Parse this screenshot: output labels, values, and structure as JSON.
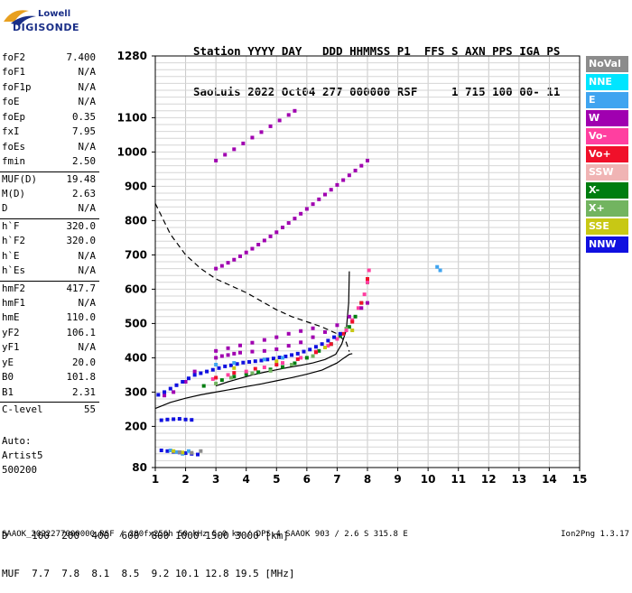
{
  "logo": {
    "line1": "Lowell",
    "line2": "DIGISONDE"
  },
  "header": {
    "line1": "Station YYYY DAY   DDD HHMMSS P1  FFS S AXN PPS IGA PS",
    "line2": "SaoLuis 2022 Oct04 277 000000 RSF     1 715 100 00- 11"
  },
  "params": [
    {
      "label": "foF2",
      "value": "7.400"
    },
    {
      "label": "foF1",
      "value": "N/A"
    },
    {
      "label": "foF1p",
      "value": "N/A"
    },
    {
      "label": "foE",
      "value": "N/A"
    },
    {
      "label": "foEp",
      "value": "0.35"
    },
    {
      "label": "fxI",
      "value": "7.95"
    },
    {
      "label": "foEs",
      "value": "N/A"
    },
    {
      "label": "fmin",
      "value": "2.50"
    },
    {
      "label": "MUF(D)",
      "value": "19.48"
    },
    {
      "label": "M(D)",
      "value": "2.63"
    },
    {
      "label": "D",
      "value": "N/A"
    },
    {
      "label": "h`F",
      "value": "320.0"
    },
    {
      "label": "h`F2",
      "value": "320.0"
    },
    {
      "label": "h`E",
      "value": "N/A"
    },
    {
      "label": "h`Es",
      "value": "N/A"
    },
    {
      "label": "hmF2",
      "value": "417.7"
    },
    {
      "label": "hmF1",
      "value": "N/A"
    },
    {
      "label": "hmE",
      "value": "110.0"
    },
    {
      "label": "yF2",
      "value": "106.1"
    },
    {
      "label": "yF1",
      "value": "N/A"
    },
    {
      "label": "yE",
      "value": "20.0"
    },
    {
      "label": "B0",
      "value": "101.8"
    },
    {
      "label": "B1",
      "value": "2.31"
    },
    {
      "label": "C-level",
      "value": "55"
    }
  ],
  "auto": {
    "line1": "Auto:",
    "line2": "Artist5",
    "line3": "500200"
  },
  "legend": [
    {
      "label": "NoVal",
      "color": "#8c8c8c"
    },
    {
      "label": "NNE",
      "color": "#00e5ff"
    },
    {
      "label": "E",
      "color": "#3fa4f0"
    },
    {
      "label": "W",
      "color": "#a000b0"
    },
    {
      "label": "Vo-",
      "color": "#ff3fa0"
    },
    {
      "label": "Vo+",
      "color": "#f0102a"
    },
    {
      "label": "SSW",
      "color": "#f0b4b4"
    },
    {
      "label": "X-",
      "color": "#007d10"
    },
    {
      "label": "X+",
      "color": "#72b460"
    },
    {
      "label": "SSE",
      "color": "#c8c814"
    },
    {
      "label": "NNW",
      "color": "#1010e0"
    }
  ],
  "conversion": {
    "line1": "D    100  200  400  600  800 1000 1500 3000 [km]",
    "line2": "MUF  7.7  7.8  8.1  8.5  9.2 10.1 12.8 19.5 [MHz]"
  },
  "footer": "SAAOK_2022277000000.RSF / 280fx256h 50 kHz 5.0 km / DPS-4 SAAOK 903 / 2.6 S 315.8 E",
  "version": "Ion2Png 1.3.17",
  "chart_data": {
    "type": "scatter",
    "xlabel": "",
    "ylabel": "",
    "xlim": [
      1,
      15
    ],
    "ylim": [
      80,
      1280
    ],
    "xticks": [
      1,
      2,
      3,
      4,
      5,
      6,
      7,
      8,
      9,
      10,
      11,
      12,
      13,
      14,
      15
    ],
    "yticks": [
      80,
      200,
      300,
      400,
      500,
      600,
      700,
      800,
      900,
      1000,
      1100,
      1280
    ],
    "grid": true,
    "series": [
      {
        "name": "X-",
        "color": "#007d10",
        "x": [
          2.6,
          3.2,
          3.6,
          4.0,
          4.4,
          4.8,
          5.2,
          5.6,
          6.0,
          6.4,
          6.8,
          7.1,
          7.4,
          7.6,
          7.8,
          8.0
        ],
        "y": [
          318,
          335,
          345,
          352,
          358,
          366,
          373,
          384,
          400,
          420,
          440,
          463,
          490,
          520,
          560,
          620
        ]
      },
      {
        "name": "X+",
        "color": "#72b460",
        "x": [
          3.0,
          3.5,
          4.2,
          4.8,
          5.5,
          6.2,
          6.8,
          7.3
        ],
        "y": [
          325,
          342,
          355,
          362,
          380,
          405,
          440,
          485
        ]
      },
      {
        "name": "Vo-",
        "color": "#ff3fa0",
        "x": [
          2.9,
          3.4,
          4.0,
          4.6,
          5.2,
          5.8,
          6.3,
          6.7,
          7.0,
          7.3,
          7.5,
          7.7,
          7.9,
          8.0,
          8.05
        ],
        "y": [
          338,
          350,
          360,
          372,
          385,
          400,
          418,
          435,
          455,
          480,
          510,
          545,
          585,
          620,
          655
        ]
      },
      {
        "name": "Vo+",
        "color": "#f0102a",
        "x": [
          3.0,
          3.6,
          4.3,
          5.0,
          5.7,
          6.3,
          6.8,
          7.2,
          7.5,
          7.8,
          8.0
        ],
        "y": [
          342,
          356,
          368,
          380,
          396,
          416,
          440,
          470,
          505,
          560,
          630
        ]
      },
      {
        "name": "W",
        "color": "#a000b0",
        "x": [
          1.3,
          1.6,
          2.0,
          2.3,
          3.0,
          3.2,
          3.4,
          3.6,
          3.8,
          4.2,
          4.6,
          5.0,
          5.4,
          5.8,
          6.2,
          6.6,
          7.0,
          7.4,
          7.8,
          8.0,
          3.0,
          3.2,
          3.4,
          3.6,
          3.8,
          4.0,
          4.2,
          4.4,
          4.6,
          4.8,
          5.0,
          5.2,
          5.4,
          5.6,
          5.8,
          6.0,
          6.2,
          6.4,
          6.6,
          6.8,
          7.0,
          7.2,
          7.4,
          7.6,
          7.8,
          8.0,
          3.0,
          3.3,
          3.6,
          3.9,
          4.2,
          4.5,
          4.8,
          5.1,
          5.4,
          5.6,
          3.0,
          3.4,
          3.8,
          4.2,
          4.6,
          5.0,
          5.4,
          5.8,
          6.2
        ],
        "y": [
          290,
          300,
          330,
          360,
          400,
          405,
          408,
          412,
          415,
          418,
          420,
          425,
          435,
          445,
          460,
          475,
          495,
          520,
          545,
          560,
          660,
          668,
          677,
          686,
          696,
          707,
          718,
          730,
          742,
          754,
          766,
          780,
          793,
          806,
          820,
          834,
          848,
          862,
          876,
          890,
          904,
          918,
          932,
          946,
          960,
          975,
          975,
          992,
          1008,
          1025,
          1042,
          1058,
          1075,
          1092,
          1108,
          1120,
          420,
          428,
          436,
          444,
          452,
          460,
          470,
          478,
          486
        ]
      },
      {
        "name": "NNW",
        "color": "#1010e0",
        "x": [
          1.1,
          1.3,
          1.5,
          1.7,
          1.9,
          2.1,
          2.3,
          2.5,
          2.7,
          2.9,
          3.1,
          3.3,
          3.5,
          3.7,
          3.9,
          4.1,
          4.3,
          4.5,
          4.7,
          4.9,
          5.1,
          5.3,
          5.5,
          5.7,
          5.9,
          6.1,
          6.3,
          6.5,
          6.7,
          6.9,
          7.1,
          1.2,
          1.4,
          1.6,
          1.8,
          2.0,
          2.2,
          1.2,
          1.4,
          1.6,
          1.8,
          2.0,
          2.2,
          2.4
        ],
        "y": [
          292,
          300,
          310,
          320,
          330,
          340,
          350,
          355,
          360,
          365,
          370,
          375,
          378,
          382,
          386,
          388,
          390,
          392,
          395,
          398,
          401,
          404,
          408,
          412,
          418,
          424,
          432,
          440,
          450,
          460,
          470,
          218,
          220,
          221,
          222,
          220,
          219,
          130,
          128,
          126,
          124,
          122,
          120,
          118
        ]
      },
      {
        "name": "E",
        "color": "#3fa4f0",
        "x": [
          1.5,
          1.7,
          1.9,
          2.1,
          3.0,
          3.6,
          4.6,
          5.2,
          10.3,
          10.4
        ],
        "y": [
          130,
          125,
          120,
          128,
          380,
          385,
          395,
          400,
          665,
          655
        ]
      },
      {
        "name": "SSE",
        "color": "#c8c814",
        "x": [
          1.6,
          1.9,
          3.6,
          5.0,
          6.6,
          7.5
        ],
        "y": [
          128,
          124,
          370,
          390,
          430,
          480
        ]
      },
      {
        "name": "NoVal",
        "color": "#8c8c8c",
        "x": [
          1.8,
          2.2,
          2.5
        ],
        "y": [
          125,
          123,
          128
        ]
      }
    ],
    "curves": [
      {
        "name": "electron density profile (dashed)",
        "style": "dashed",
        "x": [
          1.0,
          1.5,
          2.0,
          2.5,
          3.0,
          3.5,
          4.0,
          4.5,
          5.0,
          5.5,
          6.0,
          6.5,
          7.0,
          7.3,
          7.4
        ],
        "y": [
          850,
          760,
          700,
          660,
          630,
          610,
          590,
          565,
          540,
          520,
          505,
          490,
          470,
          445,
          418
        ]
      },
      {
        "name": "virtual height curve (solid)",
        "style": "solid",
        "x": [
          1.0,
          1.5,
          2.0,
          2.5,
          3.0,
          3.5,
          4.0,
          4.5,
          5.0,
          5.5,
          6.0,
          6.5,
          7.0,
          7.2,
          7.4,
          7.5
        ],
        "y": [
          252,
          270,
          282,
          292,
          300,
          308,
          316,
          324,
          333,
          342,
          352,
          364,
          385,
          398,
          410,
          412
        ]
      },
      {
        "name": "virtual height curve (solid upper)",
        "style": "solid",
        "x": [
          7.4,
          7.38,
          7.3,
          7.15,
          6.95,
          6.6,
          6.2,
          5.8,
          5.4,
          5.0,
          4.6,
          4.2,
          3.8,
          3.4,
          3.0
        ],
        "y": [
          652,
          560,
          480,
          440,
          410,
          395,
          385,
          378,
          372,
          365,
          358,
          350,
          340,
          330,
          318
        ]
      }
    ]
  }
}
